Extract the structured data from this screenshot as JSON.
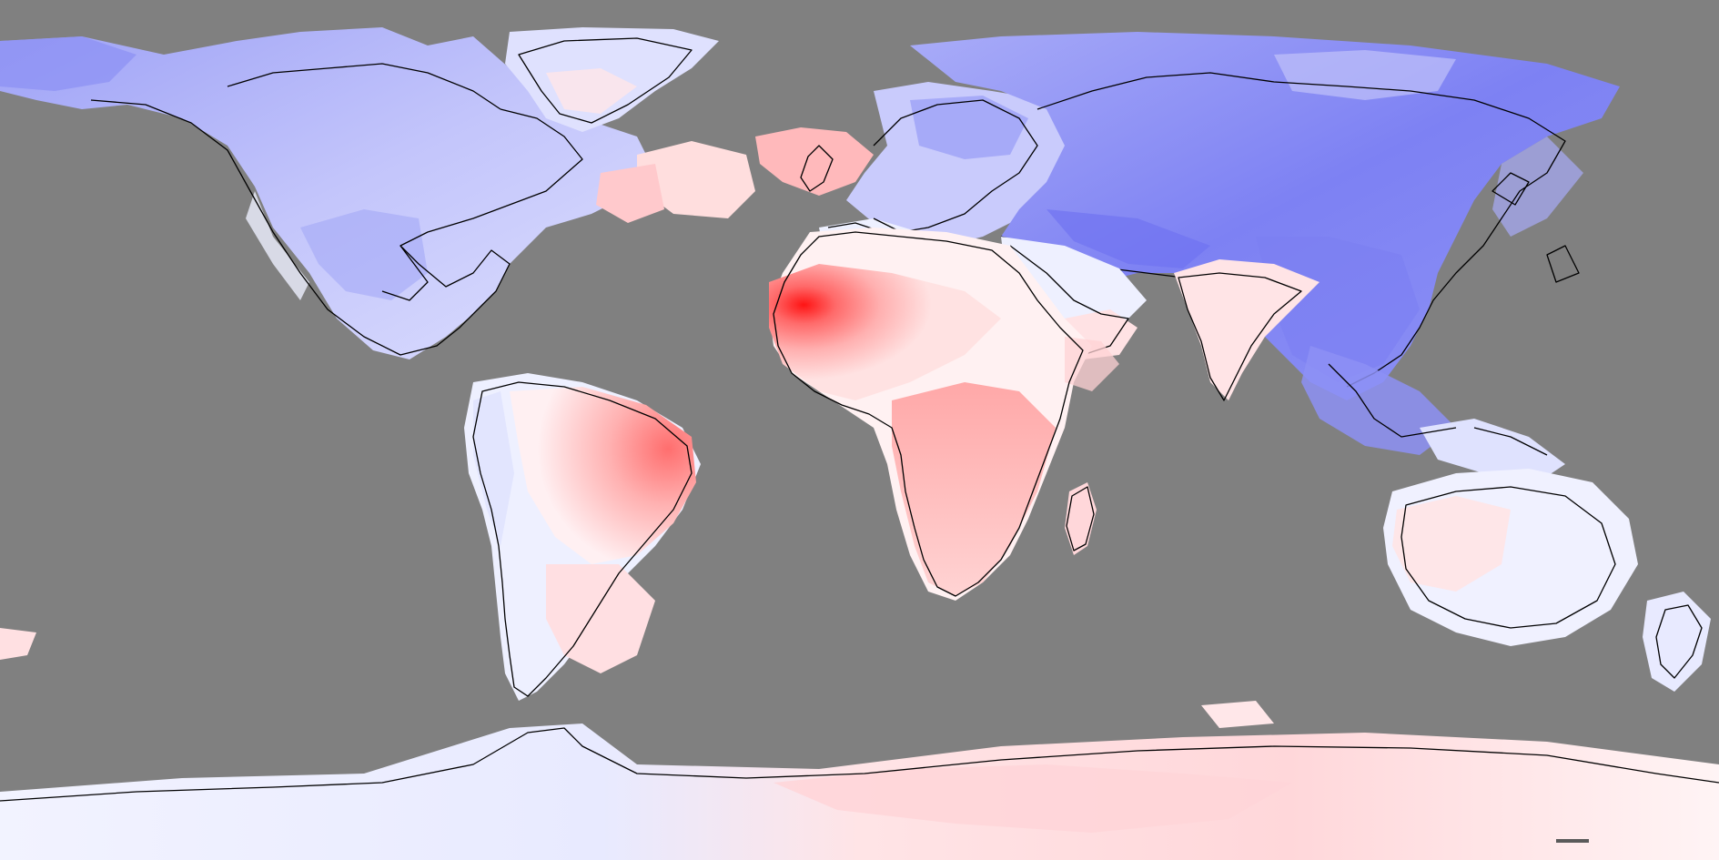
{
  "map": {
    "projection": "equirectangular",
    "ocean_color": "#808080",
    "coastline_color": "#000000",
    "color_scale": {
      "strong_cold": "#5a5ff0",
      "cold": "#8f93f5",
      "cool": "#c5c7fb",
      "slight_cool": "#eef0ff",
      "neutral": "#ffffff",
      "slight_warm": "#ffe8e8",
      "warm": "#ffbcbc",
      "hot": "#ff7a7a",
      "strong_hot": "#ff1a1a"
    },
    "regions": [
      "north-america",
      "greenland",
      "south-america",
      "europe",
      "asia",
      "india",
      "africa",
      "madagascar",
      "australia",
      "new-zealand",
      "antarctica",
      "british-isles",
      "arabia",
      "southeast-asia"
    ]
  }
}
